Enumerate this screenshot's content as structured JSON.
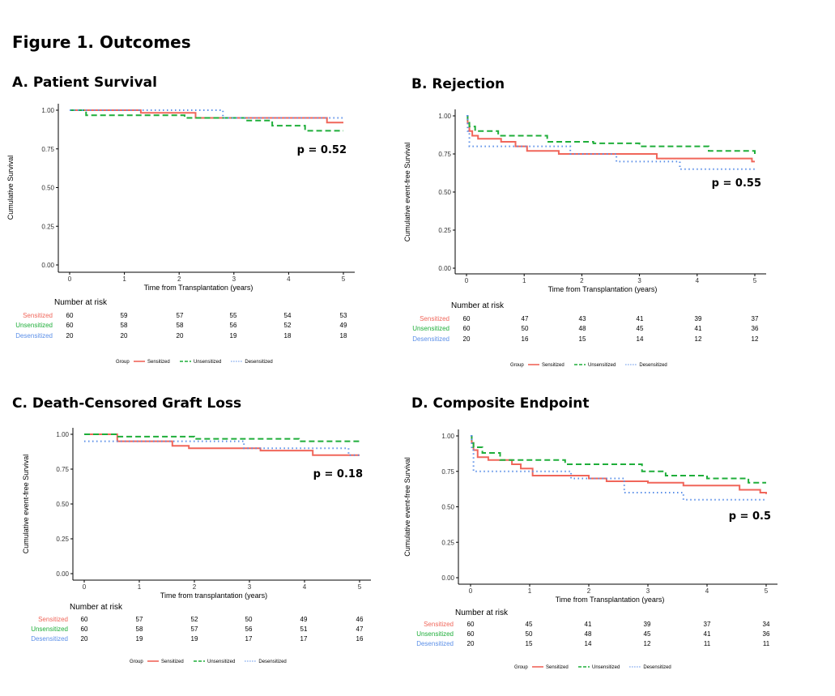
{
  "figure_title": "Figure 1. Outcomes",
  "colors": {
    "Sensitized": "#f0665a",
    "Unsensitized": "#1fae3a",
    "Desensitized": "#5b8fe8"
  },
  "chart_data": [
    {
      "type": "line",
      "title": "A. Patient Survival",
      "xlabel": "Time from Transplantation (years)",
      "ylabel": "Cumulative Survival",
      "xlim": [
        0,
        5
      ],
      "ylim": [
        0,
        1
      ],
      "xticks": [
        "0",
        "1",
        "2",
        "3",
        "4",
        "5"
      ],
      "yticks": [
        "0.00",
        "0.25",
        "0.50",
        "0.75",
        "1.00"
      ],
      "p_value": "p = 0.52",
      "series": [
        {
          "name": "Sensitized",
          "style": "solid",
          "x": [
            0,
            1.3,
            2.3,
            4.7,
            5
          ],
          "y": [
            1.0,
            0.983,
            0.95,
            0.92,
            0.92
          ]
        },
        {
          "name": "Unsensitized",
          "style": "dashed",
          "x": [
            0,
            0.3,
            2.1,
            3.2,
            3.7,
            4.3,
            5
          ],
          "y": [
            1.0,
            0.967,
            0.95,
            0.933,
            0.9,
            0.867,
            0.867
          ]
        },
        {
          "name": "Desensitized",
          "style": "dotted",
          "x": [
            0,
            2.8,
            4.8,
            5
          ],
          "y": [
            1.0,
            0.95,
            0.95,
            0.95
          ]
        }
      ],
      "risk_table": {
        "title": "Number at risk",
        "rows": [
          {
            "group": "Sensitized",
            "values": [
              "60",
              "59",
              "57",
              "55",
              "54",
              "53"
            ]
          },
          {
            "group": "Unsensitized",
            "values": [
              "60",
              "58",
              "58",
              "56",
              "52",
              "49"
            ]
          },
          {
            "group": "Desensitized",
            "values": [
              "20",
              "20",
              "20",
              "19",
              "18",
              "18"
            ]
          }
        ]
      },
      "legend": {
        "title": "Group",
        "entries": [
          "Sensitized",
          "Unsensitized",
          "Desensitized"
        ]
      }
    },
    {
      "type": "line",
      "title": "B. Rejection",
      "xlabel": "Time from Transplantation (years)",
      "ylabel": "Cumulative event-free Survival",
      "xlim": [
        0,
        5
      ],
      "ylim": [
        0,
        1
      ],
      "xticks": [
        "0",
        "1",
        "2",
        "3",
        "4",
        "5"
      ],
      "yticks": [
        "0.00",
        "0.25",
        "0.50",
        "0.75",
        "1.00"
      ],
      "p_value": "p = 0.55",
      "series": [
        {
          "name": "Sensitized",
          "style": "solid",
          "x": [
            0,
            0.02,
            0.05,
            0.1,
            0.2,
            0.6,
            0.85,
            1.05,
            1.6,
            3.3,
            4.95,
            5
          ],
          "y": [
            1.0,
            0.95,
            0.9,
            0.87,
            0.85,
            0.83,
            0.8,
            0.77,
            0.75,
            0.72,
            0.7,
            0.7
          ]
        },
        {
          "name": "Unsensitized",
          "style": "dashed",
          "x": [
            0,
            0.02,
            0.05,
            0.15,
            0.55,
            1.4,
            2.2,
            3.0,
            4.2,
            5
          ],
          "y": [
            1.0,
            0.97,
            0.93,
            0.9,
            0.87,
            0.83,
            0.82,
            0.8,
            0.77,
            0.75
          ]
        },
        {
          "name": "Desensitized",
          "style": "dotted",
          "x": [
            0,
            0.02,
            0.05,
            0.9,
            1.8,
            2.6,
            3.7,
            4.9,
            5
          ],
          "y": [
            1.0,
            0.9,
            0.8,
            0.8,
            0.75,
            0.7,
            0.65,
            0.65,
            0.65
          ]
        }
      ],
      "risk_table": {
        "title": "Number at risk",
        "rows": [
          {
            "group": "Sensitized",
            "values": [
              "60",
              "47",
              "43",
              "41",
              "39",
              "37"
            ]
          },
          {
            "group": "Unsensitized",
            "values": [
              "60",
              "50",
              "48",
              "45",
              "41",
              "36"
            ]
          },
          {
            "group": "Desensitized",
            "values": [
              "20",
              "16",
              "15",
              "14",
              "12",
              "12"
            ]
          }
        ]
      },
      "legend": {
        "title": "Group",
        "entries": [
          "Sensitized",
          "Unsensitized",
          "Desensitized"
        ]
      }
    },
    {
      "type": "line",
      "title": "C. Death-Censored Graft Loss",
      "xlabel": "Time from transplantation (years)",
      "ylabel": "Cumulative event-free Survival",
      "xlim": [
        0,
        5
      ],
      "ylim": [
        0,
        1
      ],
      "xticks": [
        "0",
        "1",
        "2",
        "3",
        "4",
        "5"
      ],
      "yticks": [
        "0.00",
        "0.25",
        "0.50",
        "0.75",
        "1.00"
      ],
      "p_value": "p = 0.18",
      "series": [
        {
          "name": "Sensitized",
          "style": "solid",
          "x": [
            0,
            0.6,
            1.6,
            1.9,
            3.2,
            4.15,
            5
          ],
          "y": [
            1.0,
            0.95,
            0.917,
            0.9,
            0.883,
            0.85,
            0.85
          ]
        },
        {
          "name": "Unsensitized",
          "style": "dashed",
          "x": [
            0,
            0.6,
            2.0,
            3.0,
            3.9,
            5
          ],
          "y": [
            1.0,
            0.983,
            0.967,
            0.967,
            0.95,
            0.95
          ]
        },
        {
          "name": "Desensitized",
          "style": "dotted",
          "x": [
            0,
            0.6,
            2.9,
            4.8,
            5
          ],
          "y": [
            0.95,
            0.95,
            0.9,
            0.85,
            0.85
          ]
        }
      ],
      "risk_table": {
        "title": "Number at risk",
        "rows": [
          {
            "group": "Sensitized",
            "values": [
              "60",
              "57",
              "52",
              "50",
              "49",
              "46"
            ]
          },
          {
            "group": "Unsensitized",
            "values": [
              "60",
              "58",
              "57",
              "56",
              "51",
              "47"
            ]
          },
          {
            "group": "Desensitized",
            "values": [
              "20",
              "19",
              "19",
              "17",
              "17",
              "16"
            ]
          }
        ]
      },
      "legend": {
        "title": "Group",
        "entries": [
          "Sensitized",
          "Unsensitized",
          "Desensitized"
        ]
      }
    },
    {
      "type": "line",
      "title": "D. Composite Endpoint",
      "xlabel": "Time from Transplantation (years)",
      "ylabel": "Cumulative event-free Survival",
      "xlim": [
        0,
        5
      ],
      "ylim": [
        0,
        1
      ],
      "xticks": [
        "0",
        "1",
        "2",
        "3",
        "4",
        "5"
      ],
      "yticks": [
        "0.00",
        "0.25",
        "0.50",
        "0.75",
        "1.00"
      ],
      "p_value": "p = 0.5",
      "series": [
        {
          "name": "Sensitized",
          "style": "solid",
          "x": [
            0,
            0.02,
            0.05,
            0.12,
            0.3,
            0.7,
            0.85,
            1.05,
            2.0,
            2.3,
            3.0,
            3.6,
            4.55,
            4.9,
            5
          ],
          "y": [
            1.0,
            0.95,
            0.9,
            0.85,
            0.83,
            0.8,
            0.77,
            0.72,
            0.7,
            0.68,
            0.67,
            0.65,
            0.62,
            0.6,
            0.59
          ]
        },
        {
          "name": "Unsensitized",
          "style": "dashed",
          "x": [
            0,
            0.02,
            0.05,
            0.2,
            0.5,
            1.6,
            2.9,
            3.3,
            4.0,
            4.7,
            5
          ],
          "y": [
            1.0,
            0.95,
            0.92,
            0.88,
            0.83,
            0.8,
            0.75,
            0.72,
            0.7,
            0.67,
            0.67
          ]
        },
        {
          "name": "Desensitized",
          "style": "dotted",
          "x": [
            0,
            0.02,
            0.05,
            1.7,
            2.6,
            3.6,
            5
          ],
          "y": [
            1.0,
            0.9,
            0.75,
            0.7,
            0.6,
            0.55,
            0.55
          ]
        }
      ],
      "risk_table": {
        "title": "Number at risk",
        "rows": [
          {
            "group": "Sensitized",
            "values": [
              "60",
              "45",
              "41",
              "39",
              "37",
              "34"
            ]
          },
          {
            "group": "Unsensitized",
            "values": [
              "60",
              "50",
              "48",
              "45",
              "41",
              "36"
            ]
          },
          {
            "group": "Desensitized",
            "values": [
              "20",
              "15",
              "14",
              "12",
              "11",
              "11"
            ]
          }
        ]
      },
      "legend": {
        "title": "Group",
        "entries": [
          "Sensitized",
          "Unsensitized",
          "Desensitized"
        ]
      }
    }
  ]
}
